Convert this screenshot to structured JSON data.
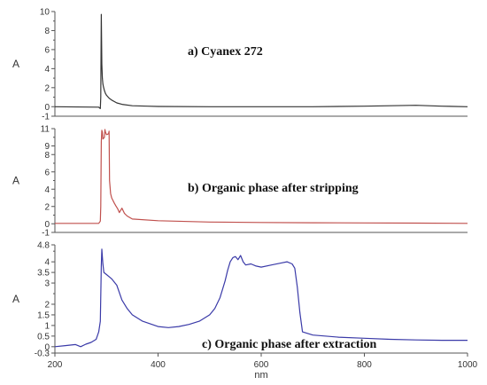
{
  "chart_data": [
    {
      "type": "line",
      "ylabel": "A",
      "annotation": "a) Cyanex 272",
      "xlim": [
        200,
        1000
      ],
      "ylim": [
        -1,
        10
      ],
      "yticks": [
        10,
        8,
        6,
        4,
        2,
        0,
        -1
      ],
      "minor_yticks": [
        9,
        7,
        5,
        3,
        1
      ],
      "color": "#333333",
      "series": [
        {
          "x": [
            200,
            285,
            288,
            289,
            290,
            291,
            292,
            293,
            294,
            296,
            298,
            300,
            305,
            310,
            320,
            330,
            350,
            380,
            400,
            500,
            600,
            700,
            800,
            900,
            950,
            1000
          ],
          "y": [
            0,
            -0.05,
            -0.2,
            1.0,
            9.7,
            4.5,
            3.0,
            2.4,
            2.1,
            1.7,
            1.4,
            1.2,
            0.9,
            0.7,
            0.4,
            0.25,
            0.1,
            0.05,
            0.03,
            0.0,
            0.0,
            0.0,
            0.05,
            0.15,
            0.05,
            0.0
          ]
        }
      ]
    },
    {
      "type": "line",
      "ylabel": "A",
      "annotation": "b) Organic phase after stripping",
      "xlim": [
        200,
        1000
      ],
      "ylim": [
        -1,
        11
      ],
      "yticks": [
        11,
        9,
        8,
        6,
        4,
        2,
        0,
        -1
      ],
      "minor_yticks": [
        10,
        7,
        5,
        3,
        1
      ],
      "color": "#c0504d",
      "series": [
        {
          "x": [
            200,
            285,
            288,
            289,
            290,
            291,
            292,
            293,
            296,
            297,
            298,
            300,
            304,
            305,
            306,
            308,
            310,
            315,
            318,
            322,
            325,
            330,
            335,
            340,
            350,
            400,
            500,
            600,
            700,
            800,
            900,
            1000
          ],
          "y": [
            0.05,
            0.05,
            0.3,
            2.0,
            9.5,
            10.8,
            10.6,
            9.8,
            10.0,
            10.9,
            10.6,
            10.3,
            10.4,
            10.7,
            5.0,
            3.5,
            3.0,
            2.4,
            2.1,
            1.7,
            1.3,
            1.8,
            1.2,
            0.9,
            0.55,
            0.35,
            0.2,
            0.15,
            0.12,
            0.1,
            0.08,
            0.05
          ]
        }
      ]
    },
    {
      "type": "line",
      "ylabel": "A",
      "annotation": "c) Organic phase after extraction",
      "xlabel": "nm",
      "xlim": [
        200,
        1000
      ],
      "ylim": [
        -0.3,
        4.8
      ],
      "yticks": [
        4.8,
        4.0,
        3.5,
        3.0,
        2.0,
        1.5,
        1.0,
        0.5,
        0.0,
        -0.3
      ],
      "minor_yticks": [
        4.5,
        2.5
      ],
      "xticks": [
        200,
        400,
        600,
        800,
        1000
      ],
      "color": "#3a3aa8",
      "series": [
        {
          "x": [
            200,
            220,
            240,
            250,
            260,
            270,
            280,
            285,
            288,
            290,
            291,
            293,
            295,
            300,
            310,
            320,
            330,
            340,
            350,
            370,
            400,
            420,
            440,
            460,
            480,
            500,
            510,
            520,
            530,
            535,
            540,
            545,
            550,
            555,
            560,
            565,
            570,
            580,
            590,
            600,
            620,
            640,
            650,
            660,
            665,
            670,
            675,
            680,
            700,
            750,
            800,
            850,
            900,
            950,
            1000
          ],
          "y": [
            0.0,
            0.05,
            0.1,
            0.0,
            0.12,
            0.2,
            0.35,
            0.7,
            1.2,
            3.8,
            4.6,
            3.9,
            3.5,
            3.4,
            3.2,
            2.9,
            2.2,
            1.8,
            1.5,
            1.2,
            0.95,
            0.9,
            0.95,
            1.05,
            1.2,
            1.5,
            1.8,
            2.3,
            3.1,
            3.6,
            4.0,
            4.2,
            4.25,
            4.1,
            4.3,
            4.0,
            3.85,
            3.9,
            3.8,
            3.75,
            3.85,
            3.95,
            4.0,
            3.9,
            3.7,
            2.8,
            1.6,
            0.7,
            0.55,
            0.45,
            0.4,
            0.35,
            0.32,
            0.3,
            0.3
          ]
        }
      ]
    }
  ]
}
